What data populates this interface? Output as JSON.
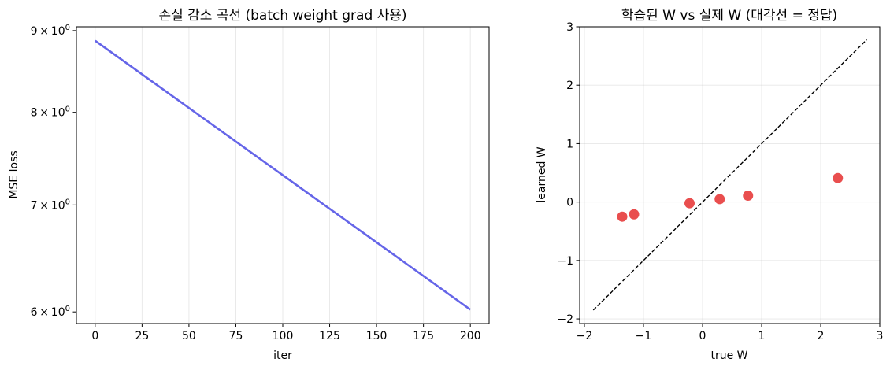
{
  "chart_data": [
    {
      "type": "line",
      "title": "손실 감소 곡선 (batch weight grad 사용)",
      "xlabel": "iter",
      "ylabel": "MSE loss",
      "xlim": [
        -10,
        210
      ],
      "ylim": [
        5.9,
        9.05
      ],
      "y_scale": "log",
      "x_ticks": [
        0,
        25,
        50,
        75,
        100,
        125,
        150,
        175,
        200
      ],
      "x_tick_labels": [
        "0",
        "25",
        "50",
        "75",
        "100",
        "125",
        "150",
        "175",
        "200"
      ],
      "y_ticks": [
        6,
        7,
        8,
        9
      ],
      "y_tick_labels": [
        {
          "base": "6",
          "mult": "×",
          "ten": "10",
          "exp": "0"
        },
        {
          "base": "7",
          "mult": "×",
          "ten": "10",
          "exp": "0"
        },
        {
          "base": "8",
          "mult": "×",
          "ten": "10",
          "exp": "0"
        },
        {
          "base": "9",
          "mult": "×",
          "ten": "10",
          "exp": "0"
        }
      ],
      "grid": "x",
      "series": [
        {
          "color": "#6565e8",
          "x": [
            0,
            200
          ],
          "y": [
            8.87,
            6.02
          ]
        }
      ]
    },
    {
      "type": "scatter",
      "title": "학습된 W vs 실제 W (대각선 = 정답)",
      "xlabel": "true W",
      "ylabel": "learned W",
      "xlim": [
        -2.08,
        3.0
      ],
      "ylim": [
        -2.08,
        3.0
      ],
      "x_ticks": [
        -2,
        -1,
        0,
        1,
        2,
        3
      ],
      "x_tick_labels": [
        "−2",
        "−1",
        "0",
        "1",
        "2",
        "3"
      ],
      "y_ticks": [
        -2,
        -1,
        0,
        1,
        2,
        3
      ],
      "y_tick_labels": [
        "−2",
        "−1",
        "0",
        "1",
        "2",
        "3"
      ],
      "grid": "both",
      "reference_line": {
        "x": [
          -1.85,
          2.78
        ],
        "y": [
          -1.85,
          2.78
        ],
        "style": "dashed",
        "color": "#000000"
      },
      "series": [
        {
          "color": "#e84545",
          "x": [
            -1.36,
            -1.16,
            -0.22,
            0.29,
            0.77,
            2.29
          ],
          "y": [
            -0.25,
            -0.21,
            -0.02,
            0.05,
            0.11,
            0.41
          ]
        }
      ]
    }
  ]
}
